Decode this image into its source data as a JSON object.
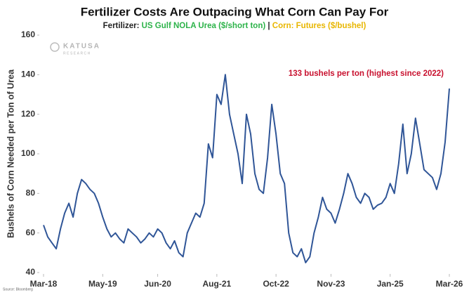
{
  "chart_data": {
    "type": "line",
    "title": "Fertilizer Costs Are Outpacing What Corn Can Pay For",
    "subtitle": [
      {
        "text": "Fertilizer: ",
        "color": "#222222"
      },
      {
        "text": "US Gulf NOLA Urea ($/short ton)",
        "color": "#2db34a"
      },
      {
        "text": " | ",
        "color": "#222222"
      },
      {
        "text": "Corn: Futures ($/bushel)",
        "color": "#e8b600"
      }
    ],
    "y_label": "Bushels of Corn Needed per Ton of Urea",
    "annotation": {
      "text": "133 bushels per ton (highest since 2022)",
      "color": "#c8102e",
      "x": "2026-03",
      "y": 133
    },
    "watermark": [
      "KATUSA",
      "RESEARCH"
    ],
    "source": "Source: Bloomberg",
    "xlim": [
      "2018-03",
      "2026-03"
    ],
    "xticks": [
      {
        "value": "2018-03",
        "label": "Mar-18"
      },
      {
        "value": "2019-05",
        "label": "May-19"
      },
      {
        "value": "2020-06",
        "label": "Jun-20"
      },
      {
        "value": "2021-08",
        "label": "Aug-21"
      },
      {
        "value": "2022-10",
        "label": "Oct-22"
      },
      {
        "value": "2023-11",
        "label": "Nov-23"
      },
      {
        "value": "2025-01",
        "label": "Jan-25"
      },
      {
        "value": "2026-03",
        "label": "Mar-26"
      }
    ],
    "ylim": [
      40,
      160
    ],
    "yticks": [
      40,
      60,
      80,
      100,
      120,
      140,
      160
    ],
    "grid": false,
    "x": [
      "2018-03",
      "2018-04",
      "2018-05",
      "2018-06",
      "2018-07",
      "2018-08",
      "2018-09",
      "2018-10",
      "2018-11",
      "2018-12",
      "2019-01",
      "2019-02",
      "2019-03",
      "2019-04",
      "2019-05",
      "2019-06",
      "2019-07",
      "2019-08",
      "2019-09",
      "2019-10",
      "2019-11",
      "2019-12",
      "2020-01",
      "2020-02",
      "2020-03",
      "2020-04",
      "2020-05",
      "2020-06",
      "2020-07",
      "2020-08",
      "2020-09",
      "2020-10",
      "2020-11",
      "2020-12",
      "2021-01",
      "2021-02",
      "2021-03",
      "2021-04",
      "2021-05",
      "2021-06",
      "2021-07",
      "2021-08",
      "2021-09",
      "2021-10",
      "2021-11",
      "2021-12",
      "2022-01",
      "2022-02",
      "2022-03",
      "2022-04",
      "2022-05",
      "2022-06",
      "2022-07",
      "2022-08",
      "2022-09",
      "2022-10",
      "2022-11",
      "2022-12",
      "2023-01",
      "2023-02",
      "2023-03",
      "2023-04",
      "2023-05",
      "2023-06",
      "2023-07",
      "2023-08",
      "2023-09",
      "2023-10",
      "2023-11",
      "2023-12",
      "2024-01",
      "2024-02",
      "2024-03",
      "2024-04",
      "2024-05",
      "2024-06",
      "2024-07",
      "2024-08",
      "2024-09",
      "2024-10",
      "2024-11",
      "2024-12",
      "2025-01",
      "2025-02",
      "2025-03",
      "2025-04",
      "2025-05",
      "2025-06",
      "2025-07",
      "2025-08",
      "2025-09",
      "2025-10",
      "2025-11",
      "2025-12",
      "2026-01",
      "2026-02",
      "2026-03"
    ],
    "series": [
      {
        "name": "Bushels per ton",
        "color": "#2f5597",
        "values": [
          64,
          58,
          55,
          52,
          62,
          70,
          75,
          68,
          80,
          87,
          85,
          82,
          80,
          75,
          68,
          62,
          58,
          60,
          57,
          55,
          62,
          60,
          58,
          55,
          57,
          60,
          58,
          62,
          60,
          55,
          52,
          56,
          50,
          48,
          60,
          65,
          70,
          68,
          75,
          105,
          98,
          130,
          125,
          140,
          120,
          110,
          100,
          85,
          120,
          110,
          90,
          82,
          80,
          98,
          125,
          110,
          90,
          85,
          60,
          50,
          48,
          52,
          45,
          48,
          60,
          68,
          78,
          72,
          70,
          65,
          72,
          80,
          90,
          85,
          78,
          75,
          80,
          78,
          72,
          74,
          75,
          78,
          85,
          80,
          95,
          115,
          90,
          100,
          118,
          105,
          92,
          90,
          88,
          82,
          90,
          106,
          133
        ]
      }
    ]
  }
}
